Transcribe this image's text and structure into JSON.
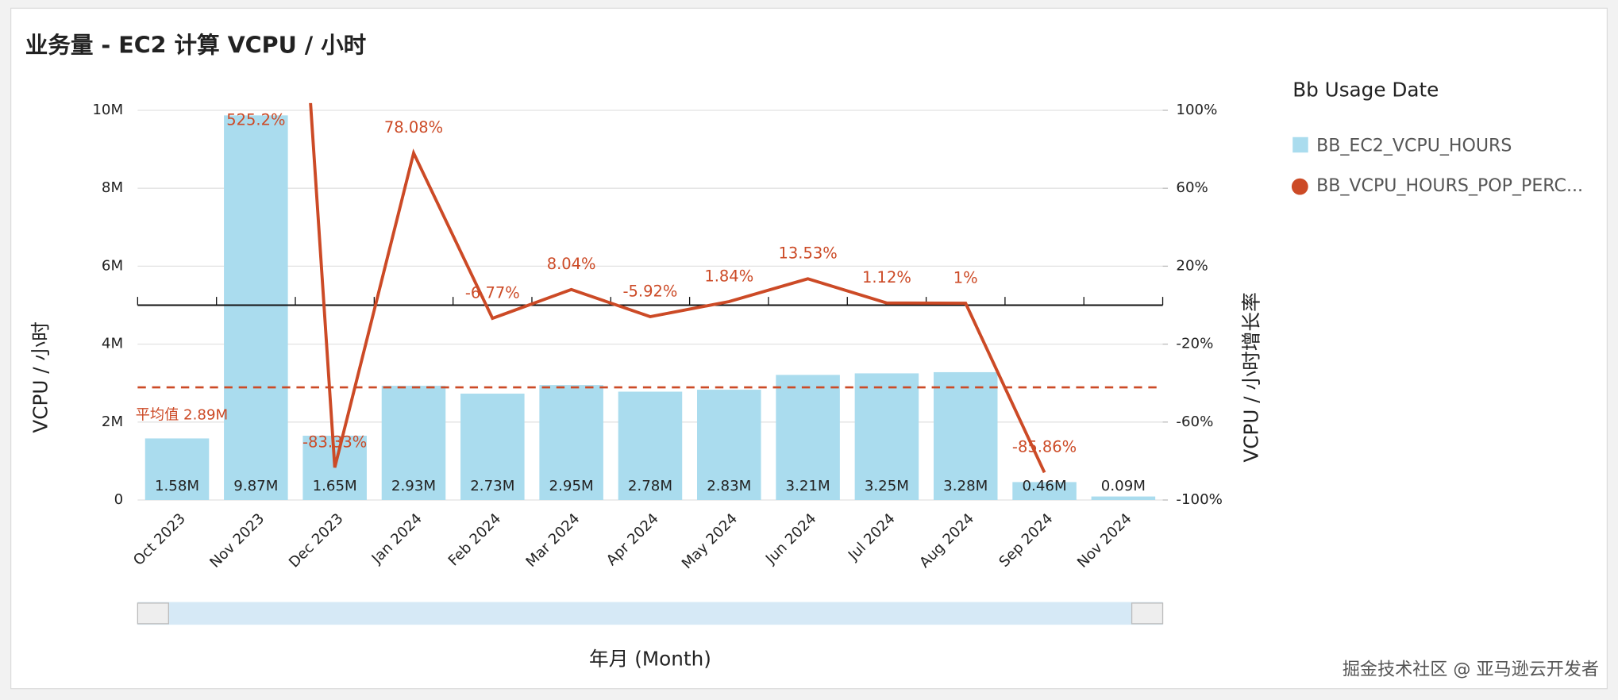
{
  "chart_data": {
    "type": "bar+line",
    "title": "业务量 - EC2 计算 VCPU / 小时",
    "x_label": "年月 (Month)",
    "y_label": "VCPU / 小时",
    "y2_label": "VCPU / 小时增长率",
    "legend_title": "Bb Usage Date",
    "categories": [
      "Oct 2023",
      "Nov 2023",
      "Dec 2023",
      "Jan 2024",
      "Feb 2024",
      "Mar 2024",
      "Apr 2024",
      "May 2024",
      "Jun 2024",
      "Jul 2024",
      "Aug 2024",
      "Sep 2024",
      "Nov 2024"
    ],
    "series": [
      {
        "name": "BB_EC2_VCPU_HOURS",
        "type": "bar",
        "color": "#aadcee",
        "values": [
          1580000,
          9870000,
          1650000,
          2930000,
          2730000,
          2950000,
          2780000,
          2830000,
          3210000,
          3250000,
          3280000,
          460000,
          90000
        ],
        "value_labels": [
          "1.58M",
          "9.87M",
          "1.65M",
          "2.93M",
          "2.73M",
          "2.95M",
          "2.78M",
          "2.83M",
          "3.21M",
          "3.25M",
          "3.28M",
          "0.46M",
          "0.09M"
        ]
      },
      {
        "name": "BB_VCPU_HOURS_POP_PERC...",
        "type": "line",
        "axis": "y2",
        "color": "#cc4a26",
        "values": [
          null,
          525.2,
          -83.33,
          78.08,
          -6.77,
          8.04,
          -5.92,
          1.84,
          13.53,
          1.12,
          1,
          -85.86,
          null
        ],
        "value_labels": [
          null,
          "525.2%",
          "-83.33%",
          "78.08%",
          "-6.77%",
          "8.04%",
          "-5.92%",
          "1.84%",
          "13.53%",
          "1.12%",
          "1%",
          "-85.86%",
          null
        ]
      }
    ],
    "average": {
      "label": "平均值",
      "value": 2890000,
      "value_label": "2.89M"
    },
    "ylim": [
      0,
      10000000
    ],
    "yticks": [
      0,
      {
        "value": 2000000,
        "label": "2M"
      },
      {
        "value": 4000000,
        "label": "4M"
      },
      {
        "value": 6000000,
        "label": "6M"
      },
      {
        "value": 8000000,
        "label": "8M"
      },
      {
        "value": 10000000,
        "label": "10M"
      }
    ],
    "y2lim": [
      -100,
      100
    ],
    "y2ticks": [
      {
        "value": -100,
        "label": "-100%"
      },
      {
        "value": -60,
        "label": "-60%"
      },
      {
        "value": -20,
        "label": "-20%"
      },
      {
        "value": 20,
        "label": "20%"
      },
      {
        "value": 60,
        "label": "60%"
      },
      {
        "value": 100,
        "label": "100%"
      }
    ],
    "grid": true,
    "legend": "right",
    "watermark": "掘金技术社区 @ 亚马逊云开发者"
  }
}
